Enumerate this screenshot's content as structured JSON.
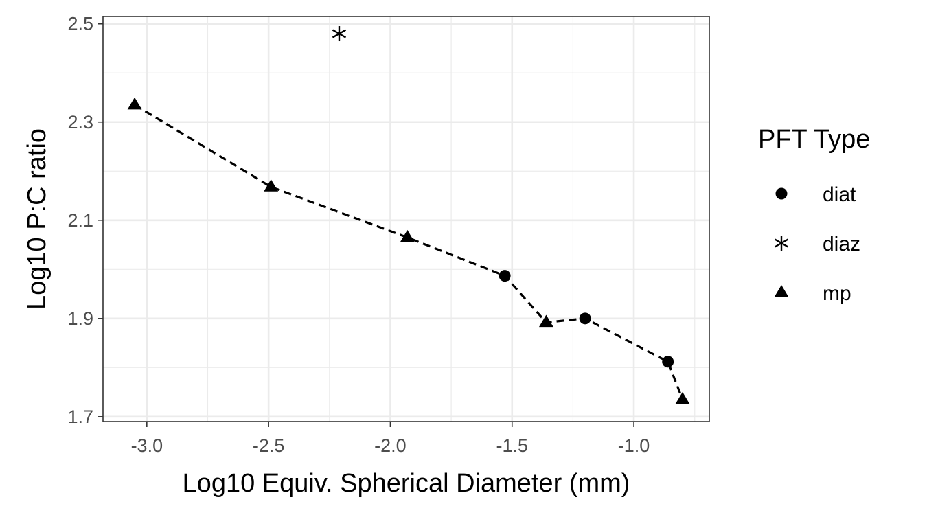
{
  "chart_data": {
    "type": "scatter",
    "xlabel": "Log10 Equiv. Spherical Diameter (mm)",
    "ylabel": "Log10 P:C ratio",
    "xlim": [
      -3.18,
      -0.69
    ],
    "ylim": [
      1.69,
      2.515
    ],
    "x_ticks": [
      -3.0,
      -2.5,
      -2.0,
      -1.5,
      -1.0
    ],
    "x_tick_labels": [
      "-3.0",
      "-2.5",
      "-2.0",
      "-1.5",
      "-1.0"
    ],
    "y_ticks": [
      1.7,
      1.9,
      2.1,
      2.3,
      2.5
    ],
    "y_tick_labels": [
      "1.7",
      "1.9",
      "2.1",
      "2.3",
      "2.5"
    ],
    "grid": true,
    "legend": {
      "title": "PFT Type",
      "position": "right",
      "entries": [
        {
          "label": "diat",
          "shape": "circle"
        },
        {
          "label": "diaz",
          "shape": "asterisk"
        },
        {
          "label": "mp",
          "shape": "triangle"
        }
      ]
    },
    "series": [
      {
        "label": "diat",
        "shape": "circle",
        "points": [
          {
            "x": -1.53,
            "y": 1.987
          },
          {
            "x": -1.2,
            "y": 1.9
          },
          {
            "x": -0.86,
            "y": 1.812
          }
        ]
      },
      {
        "label": "diaz",
        "shape": "asterisk",
        "points": [
          {
            "x": -2.21,
            "y": 2.48
          }
        ]
      },
      {
        "label": "mp",
        "shape": "triangle",
        "points": [
          {
            "x": -3.05,
            "y": 2.335
          },
          {
            "x": -2.49,
            "y": 2.168
          },
          {
            "x": -1.93,
            "y": 2.065
          },
          {
            "x": -1.36,
            "y": 1.892
          },
          {
            "x": -0.8,
            "y": 1.735
          }
        ]
      }
    ],
    "connecting_line": {
      "style": "dashed",
      "points": [
        {
          "x": -3.05,
          "y": 2.335
        },
        {
          "x": -2.49,
          "y": 2.168
        },
        {
          "x": -1.93,
          "y": 2.065
        },
        {
          "x": -1.53,
          "y": 1.987
        },
        {
          "x": -1.36,
          "y": 1.892
        },
        {
          "x": -1.2,
          "y": 1.9
        },
        {
          "x": -0.86,
          "y": 1.812
        },
        {
          "x": -0.8,
          "y": 1.735
        }
      ]
    }
  }
}
